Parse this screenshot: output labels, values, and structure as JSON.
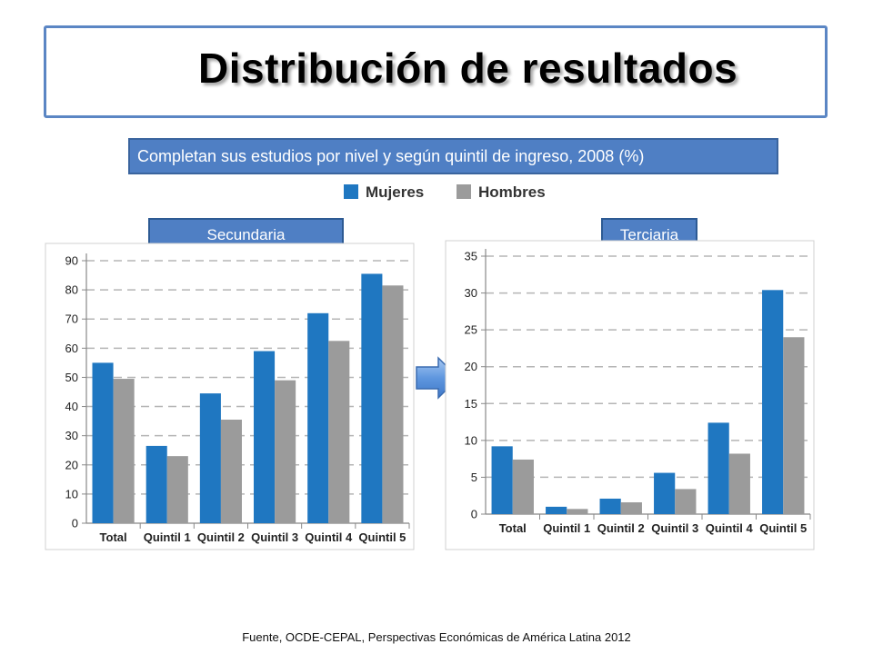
{
  "title": "Distribución de resultados",
  "subtitle": "Completan sus estudios por nivel y según quintil de ingreso, 2008 (%)",
  "legend": [
    {
      "name": "Mujeres",
      "color": "#1f77c1"
    },
    {
      "name": "Hombres",
      "color": "#9b9b9b"
    }
  ],
  "labels": {
    "left": "Secundaria",
    "right": "Terciaria"
  },
  "source": "Fuente, OCDE-CEPAL, Perspectivas Económicas de América Latina 2012",
  "arrow_icon": "right-arrow-icon",
  "chart_data": [
    {
      "type": "bar",
      "title": "Secundaria",
      "categories": [
        "Total",
        "Quintil 1",
        "Quintil 2",
        "Quintil 3",
        "Quintil 4",
        "Quintil 5"
      ],
      "series": [
        {
          "name": "Mujeres",
          "values": [
            55,
            26.5,
            44.5,
            59,
            72,
            85.5
          ]
        },
        {
          "name": "Hombres",
          "values": [
            49.5,
            23,
            35.5,
            49,
            62.5,
            81.5
          ]
        }
      ],
      "ylim": [
        0,
        90
      ],
      "yticks": [
        0,
        10,
        20,
        30,
        40,
        50,
        60,
        70,
        80,
        90
      ],
      "grid": true
    },
    {
      "type": "bar",
      "title": "Terciaria",
      "categories": [
        "Total",
        "Quintil 1",
        "Quintil 2",
        "Quintil 3",
        "Quintil 4",
        "Quintil 5"
      ],
      "series": [
        {
          "name": "Mujeres",
          "values": [
            9.2,
            1,
            2.1,
            5.6,
            12.4,
            30.4
          ]
        },
        {
          "name": "Hombres",
          "values": [
            7.4,
            0.7,
            1.6,
            3.4,
            8.2,
            24
          ]
        }
      ],
      "ylim": [
        0,
        35
      ],
      "yticks": [
        0,
        5,
        10,
        15,
        20,
        25,
        30,
        35
      ],
      "grid": true
    }
  ]
}
